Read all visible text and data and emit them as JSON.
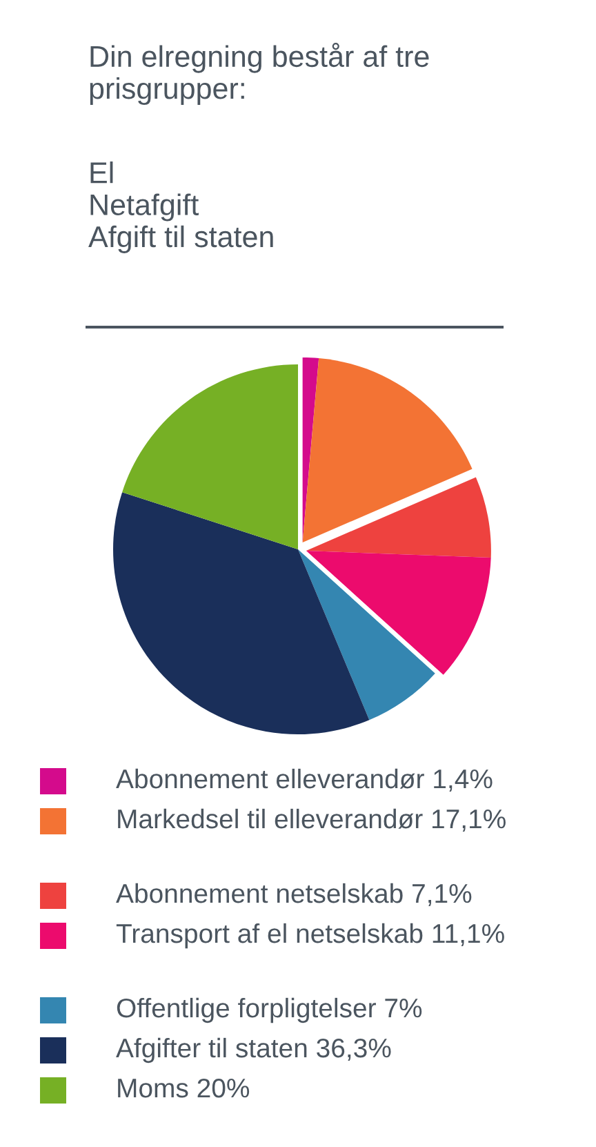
{
  "chart_data": {
    "type": "pie",
    "title": "Din elregning består af tre prisgrupper:",
    "subtitle": "El\nNetafgift\nAfgift til staten",
    "categories": [
      "Abonnement elleverandør",
      "Markedsel til elleverandør",
      "Abonnement netselskab",
      "Transport af el netselskab",
      "Offentlige forpligtelser",
      "Afgifter til staten",
      "Moms"
    ],
    "values": [
      1.4,
      17.1,
      7.1,
      11.1,
      7,
      36.3,
      20
    ],
    "value_labels": [
      "1,4%",
      "17,1%",
      "7,1%",
      "11,1%",
      "7%",
      "36,3%",
      "20%"
    ],
    "colors": [
      "#d40b8c",
      "#f37334",
      "#ee423f",
      "#ec0b6d",
      "#3486b1",
      "#1a2f5a",
      "#76b025"
    ],
    "legend": "bottom"
  }
}
